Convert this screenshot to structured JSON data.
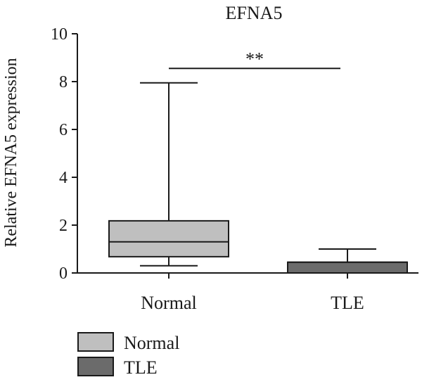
{
  "chart_data": {
    "type": "box",
    "title": "EFNA5",
    "ylabel": "Relative EFNA5 expression",
    "xlabel": "",
    "ylim": [
      0,
      10
    ],
    "yticks": [
      0,
      2,
      4,
      6,
      8,
      10
    ],
    "categories": [
      "Normal",
      "TLE"
    ],
    "series": [
      {
        "name": "Normal",
        "min": 0.3,
        "q1": 0.68,
        "median": 1.3,
        "q3": 2.18,
        "max": 7.95,
        "color": "#bfbfbf"
      },
      {
        "name": "TLE",
        "min": 0.0,
        "q1": 0.0,
        "median": 0.45,
        "q3": 0.45,
        "max": 1.0,
        "color": "#6b6b6b"
      }
    ],
    "annotation": {
      "text": "**",
      "y": 8.55
    },
    "legend": {
      "placement": "bottom-left",
      "entries": [
        "Normal",
        "TLE"
      ]
    },
    "grid": false
  }
}
